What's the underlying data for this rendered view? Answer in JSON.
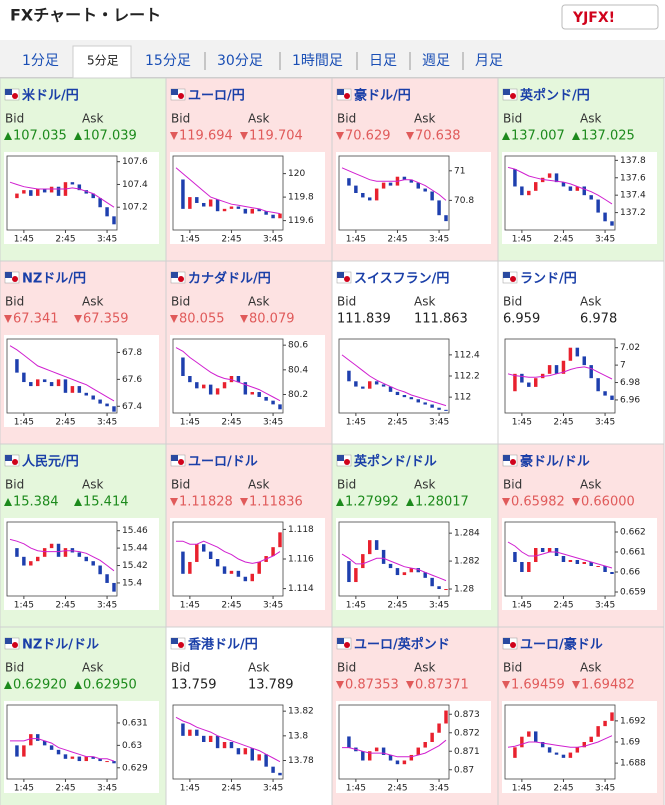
{
  "header": {
    "title": "FXチャート・レート",
    "logo": "YJFX!"
  },
  "tabs": {
    "items": [
      "1分足",
      "5分足",
      "15分足",
      "30分足",
      "1時間足",
      "日足",
      "週足",
      "月足"
    ],
    "selected": 1
  },
  "labels": {
    "bid": "Bid",
    "ask": "Ask"
  },
  "chart_xlim": [
    0,
    15
  ],
  "chart_xticks": [
    {
      "value": 2,
      "label": "1:45"
    },
    {
      "value": 8,
      "label": "2:45"
    },
    {
      "value": 14,
      "label": "3:45"
    }
  ],
  "pairs": [
    {
      "name": "米ドル/円",
      "trend": "up",
      "bid": "107.035",
      "ask": "107.039",
      "chart": {
        "ylim": [
          107.0,
          107.65
        ],
        "yticks": [
          107.2,
          107.4,
          107.6
        ],
        "price": [
          107.28,
          107.32,
          107.35,
          107.3,
          107.36,
          107.33,
          107.38,
          107.3,
          107.42,
          107.4,
          107.35,
          107.32,
          107.28,
          107.2,
          107.12,
          107.05
        ],
        "ma": [
          107.42,
          107.4,
          107.38,
          107.37,
          107.36,
          107.36,
          107.36,
          107.36,
          107.36,
          107.37,
          107.36,
          107.34,
          107.32,
          107.28,
          107.24,
          107.2
        ]
      }
    },
    {
      "name": "ユーロ/円",
      "trend": "down",
      "bid": "119.694",
      "ask": "119.704",
      "chart": {
        "ylim": [
          119.52,
          120.15
        ],
        "yticks": [
          119.6,
          119.8,
          120
        ],
        "price": [
          119.95,
          119.7,
          119.8,
          119.75,
          119.72,
          119.78,
          119.68,
          119.7,
          119.72,
          119.7,
          119.66,
          119.7,
          119.68,
          119.65,
          119.62,
          119.66
        ],
        "ma": [
          120.05,
          120.0,
          119.95,
          119.9,
          119.85,
          119.8,
          119.78,
          119.76,
          119.74,
          119.73,
          119.72,
          119.71,
          119.7,
          119.68,
          119.67,
          119.66
        ]
      }
    },
    {
      "name": "豪ドル/円",
      "trend": "down",
      "bid": "70.629",
      "ask": "70.638",
      "chart": {
        "ylim": [
          70.6,
          71.1
        ],
        "yticks": [
          70.8,
          71
        ],
        "price": [
          70.95,
          70.9,
          70.85,
          70.82,
          70.8,
          70.88,
          70.92,
          70.9,
          70.96,
          70.94,
          70.92,
          70.88,
          70.86,
          70.8,
          70.7,
          70.66
        ],
        "ma": [
          71.02,
          71.0,
          70.98,
          70.96,
          70.94,
          70.93,
          70.93,
          70.93,
          70.93,
          70.94,
          70.94,
          70.92,
          70.9,
          70.87,
          70.84,
          70.8
        ]
      }
    },
    {
      "name": "英ポンド/円",
      "trend": "up",
      "bid": "137.007",
      "ask": "137.025",
      "chart": {
        "ylim": [
          137.0,
          137.85
        ],
        "yticks": [
          137.2,
          137.4,
          137.6,
          137.8
        ],
        "price": [
          137.7,
          137.5,
          137.4,
          137.45,
          137.55,
          137.6,
          137.65,
          137.55,
          137.5,
          137.45,
          137.5,
          137.4,
          137.35,
          137.2,
          137.1,
          137.05
        ],
        "ma": [
          137.72,
          137.7,
          137.66,
          137.62,
          137.6,
          137.58,
          137.57,
          137.56,
          137.55,
          137.53,
          137.5,
          137.47,
          137.44,
          137.4,
          137.35,
          137.3
        ]
      }
    },
    {
      "name": "NZドル/円",
      "trend": "down",
      "bid": "67.341",
      "ask": "67.359",
      "chart": {
        "ylim": [
          67.35,
          67.9
        ],
        "yticks": [
          67.4,
          67.6,
          67.8
        ],
        "price": [
          67.75,
          67.65,
          67.58,
          67.55,
          67.6,
          67.58,
          67.55,
          67.6,
          67.5,
          67.55,
          67.5,
          67.48,
          67.45,
          67.42,
          67.4,
          67.36
        ],
        "ma": [
          67.85,
          67.82,
          67.78,
          67.74,
          67.7,
          67.68,
          67.66,
          67.64,
          67.62,
          67.6,
          67.58,
          67.56,
          67.53,
          67.5,
          67.47,
          67.44
        ]
      }
    },
    {
      "name": "カナダドル/円",
      "trend": "down",
      "bid": "80.055",
      "ask": "80.079",
      "chart": {
        "ylim": [
          80.05,
          80.65
        ],
        "yticks": [
          80.2,
          80.4,
          80.6
        ],
        "price": [
          80.5,
          80.35,
          80.3,
          80.25,
          80.28,
          80.2,
          80.25,
          80.3,
          80.35,
          80.3,
          80.2,
          80.22,
          80.18,
          80.15,
          80.12,
          80.08
        ],
        "ma": [
          80.58,
          80.55,
          80.5,
          80.46,
          80.42,
          80.38,
          80.35,
          80.33,
          80.32,
          80.3,
          80.28,
          80.26,
          80.24,
          80.21,
          80.18,
          80.15
        ]
      }
    },
    {
      "name": "スイスフラン/円",
      "trend": "none",
      "bid": "111.839",
      "ask": "111.863",
      "chart": {
        "ylim": [
          111.85,
          112.55
        ],
        "yticks": [
          112,
          112.2,
          112.4
        ],
        "price": [
          112.25,
          112.15,
          112.1,
          112.08,
          112.15,
          112.12,
          112.1,
          112.05,
          112.02,
          112.0,
          111.98,
          111.95,
          111.93,
          111.9,
          111.88,
          111.87
        ],
        "ma": [
          112.4,
          112.35,
          112.3,
          112.25,
          112.2,
          112.16,
          112.13,
          112.1,
          112.07,
          112.05,
          112.02,
          112.0,
          111.98,
          111.96,
          111.94,
          111.92
        ]
      }
    },
    {
      "name": "ランド/円",
      "trend": "none",
      "bid": "6.959",
      "ask": "6.978",
      "chart": {
        "ylim": [
          6.945,
          7.03
        ],
        "yticks": [
          6.96,
          6.98,
          7,
          7.02
        ],
        "price": [
          6.97,
          6.99,
          6.98,
          6.975,
          6.985,
          6.99,
          7.0,
          6.99,
          7.005,
          7.02,
          7.01,
          7.0,
          6.985,
          6.97,
          6.965,
          6.96
        ],
        "ma": [
          6.99,
          6.988,
          6.987,
          6.986,
          6.986,
          6.987,
          6.988,
          6.99,
          6.992,
          6.995,
          6.997,
          6.998,
          6.996,
          6.992,
          6.988,
          6.984
        ]
      }
    },
    {
      "name": "人民元/円",
      "trend": "up",
      "bid": "15.384",
      "ask": "15.414",
      "chart": {
        "ylim": [
          15.385,
          15.47
        ],
        "yticks": [
          15.4,
          15.42,
          15.44,
          15.46
        ],
        "price": [
          15.44,
          15.43,
          15.42,
          15.425,
          15.43,
          15.44,
          15.445,
          15.43,
          15.44,
          15.435,
          15.43,
          15.425,
          15.42,
          15.41,
          15.4,
          15.39
        ],
        "ma": [
          15.45,
          15.448,
          15.445,
          15.44,
          15.437,
          15.436,
          15.436,
          15.436,
          15.437,
          15.437,
          15.436,
          15.434,
          15.43,
          15.426,
          15.42,
          15.414
        ]
      }
    },
    {
      "name": "ユーロ/ドル",
      "trend": "down",
      "bid": "1.11828",
      "ask": "1.11836",
      "chart": {
        "ylim": [
          1.1135,
          1.1185
        ],
        "yticks": [
          1.114,
          1.116,
          1.118
        ],
        "price": [
          1.1165,
          1.115,
          1.1158,
          1.117,
          1.1165,
          1.116,
          1.1155,
          1.115,
          1.1152,
          1.1148,
          1.1145,
          1.115,
          1.1158,
          1.1162,
          1.1168,
          1.1178
        ],
        "ma": [
          1.1172,
          1.1172,
          1.117,
          1.117,
          1.1172,
          1.117,
          1.1168,
          1.1165,
          1.1163,
          1.116,
          1.1158,
          1.1157,
          1.1158,
          1.116,
          1.1162,
          1.1165
        ]
      }
    },
    {
      "name": "英ポンド/ドル",
      "trend": "up",
      "bid": "1.27992",
      "ask": "1.28017",
      "chart": {
        "ylim": [
          1.2795,
          1.2848
        ],
        "yticks": [
          1.28,
          1.282,
          1.284
        ],
        "price": [
          1.282,
          1.2805,
          1.2815,
          1.2825,
          1.2835,
          1.2828,
          1.2818,
          1.2815,
          1.281,
          1.2812,
          1.2815,
          1.2812,
          1.2808,
          1.2802,
          1.28,
          1.28
        ],
        "ma": [
          1.2825,
          1.2822,
          1.2818,
          1.2818,
          1.282,
          1.2822,
          1.2822,
          1.282,
          1.2818,
          1.2816,
          1.2815,
          1.2814,
          1.2812,
          1.281,
          1.2808,
          1.2806
        ]
      }
    },
    {
      "name": "豪ドル/ドル",
      "trend": "down",
      "bid": "0.65982",
      "ask": "0.66000",
      "chart": {
        "ylim": [
          0.6588,
          0.6625
        ],
        "yticks": [
          0.659,
          0.66,
          0.661,
          0.662
        ],
        "price": [
          0.661,
          0.6605,
          0.66,
          0.6605,
          0.6612,
          0.661,
          0.6612,
          0.6608,
          0.6605,
          0.6606,
          0.6604,
          0.6605,
          0.6603,
          0.6603,
          0.66,
          0.6599
        ],
        "ma": [
          0.6615,
          0.6613,
          0.661,
          0.6608,
          0.6608,
          0.6609,
          0.661,
          0.661,
          0.6609,
          0.6608,
          0.6607,
          0.6606,
          0.6605,
          0.6604,
          0.6603,
          0.6602
        ]
      }
    },
    {
      "name": "NZドル/ドル",
      "trend": "up",
      "bid": "0.62920",
      "ask": "0.62950",
      "chart": {
        "ylim": [
          0.6285,
          0.6318
        ],
        "yticks": [
          0.629,
          0.63,
          0.631
        ],
        "price": [
          0.63,
          0.6295,
          0.63,
          0.6305,
          0.6302,
          0.63,
          0.6298,
          0.6296,
          0.6294,
          0.6295,
          0.6293,
          0.6295,
          0.6294,
          0.6293,
          0.6293,
          0.6292
        ],
        "ma": [
          0.6302,
          0.6302,
          0.6302,
          0.6303,
          0.6303,
          0.6302,
          0.6301,
          0.6299,
          0.6298,
          0.6297,
          0.6296,
          0.6295,
          0.6295,
          0.6294,
          0.6294,
          0.6293
        ]
      }
    },
    {
      "name": "香港ドル/円",
      "trend": "none",
      "bid": "13.759",
      "ask": "13.789",
      "chart": {
        "ylim": [
          13.765,
          13.825
        ],
        "yticks": [
          13.78,
          13.8,
          13.82
        ],
        "price": [
          13.81,
          13.8,
          13.805,
          13.8,
          13.795,
          13.8,
          13.79,
          13.795,
          13.79,
          13.785,
          13.79,
          13.78,
          13.785,
          13.775,
          13.77,
          13.768
        ],
        "ma": [
          13.815,
          13.812,
          13.81,
          13.807,
          13.805,
          13.803,
          13.8,
          13.798,
          13.796,
          13.794,
          13.792,
          13.79,
          13.788,
          13.785,
          13.782,
          13.779
        ]
      }
    },
    {
      "name": "ユーロ/英ポンド",
      "trend": "down",
      "bid": "0.87353",
      "ask": "0.87371",
      "chart": {
        "ylim": [
          0.8695,
          0.8735
        ],
        "yticks": [
          0.87,
          0.871,
          0.872,
          0.873
        ],
        "price": [
          0.8718,
          0.8712,
          0.871,
          0.8705,
          0.871,
          0.8712,
          0.8708,
          0.8705,
          0.8703,
          0.8705,
          0.8708,
          0.8712,
          0.8715,
          0.872,
          0.8725,
          0.8732
        ],
        "ma": [
          0.8712,
          0.8712,
          0.8711,
          0.871,
          0.8709,
          0.8709,
          0.8709,
          0.8708,
          0.8707,
          0.8707,
          0.8707,
          0.8708,
          0.8709,
          0.8711,
          0.8713,
          0.8716
        ]
      }
    },
    {
      "name": "ユーロ/豪ドル",
      "trend": "down",
      "bid": "1.69459",
      "ask": "1.69482",
      "chart": {
        "ylim": [
          1.6865,
          1.6935
        ],
        "yticks": [
          1.688,
          1.69,
          1.692
        ],
        "price": [
          1.6885,
          1.6895,
          1.6905,
          1.691,
          1.69,
          1.6895,
          1.689,
          1.6888,
          1.6885,
          1.689,
          1.6895,
          1.69,
          1.6905,
          1.6915,
          1.692,
          1.6928
        ],
        "ma": [
          1.6895,
          1.6896,
          1.6898,
          1.69,
          1.69,
          1.6899,
          1.6898,
          1.6897,
          1.6896,
          1.6895,
          1.6895,
          1.6896,
          1.6898,
          1.69,
          1.6903,
          1.6906
        ]
      }
    }
  ]
}
